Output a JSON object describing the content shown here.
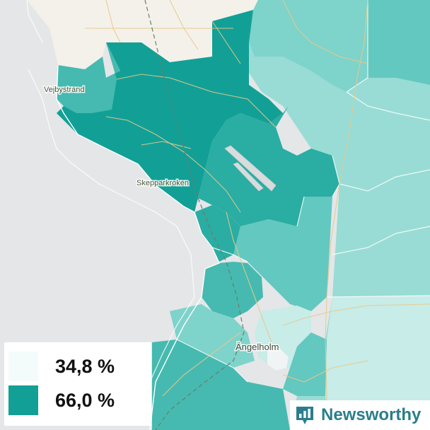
{
  "map": {
    "places": [
      {
        "name": "Vejbystrand"
      },
      {
        "name": "Skepparkroken"
      },
      {
        "name": "Ängelholm"
      }
    ],
    "colors": {
      "water": "#e4e6e8",
      "land_outside": "#f4f1ea",
      "low": "#c8ece8",
      "light": "#98dcd5",
      "mid_light": "#7ed3cb",
      "mid": "#63c8bf",
      "mid_dark": "#46bab0",
      "dark": "#2aada3",
      "darkest": "#12a096",
      "road": "#e8c98a"
    }
  },
  "legend": {
    "items": [
      {
        "value": "34,8 %",
        "color": "#f3fcfb"
      },
      {
        "value": "66,0 %",
        "color": "#12a096"
      }
    ]
  },
  "brand": {
    "name": "Newsworthy",
    "icon": "bar-chart-pin-icon",
    "color": "#2a7d8c"
  }
}
